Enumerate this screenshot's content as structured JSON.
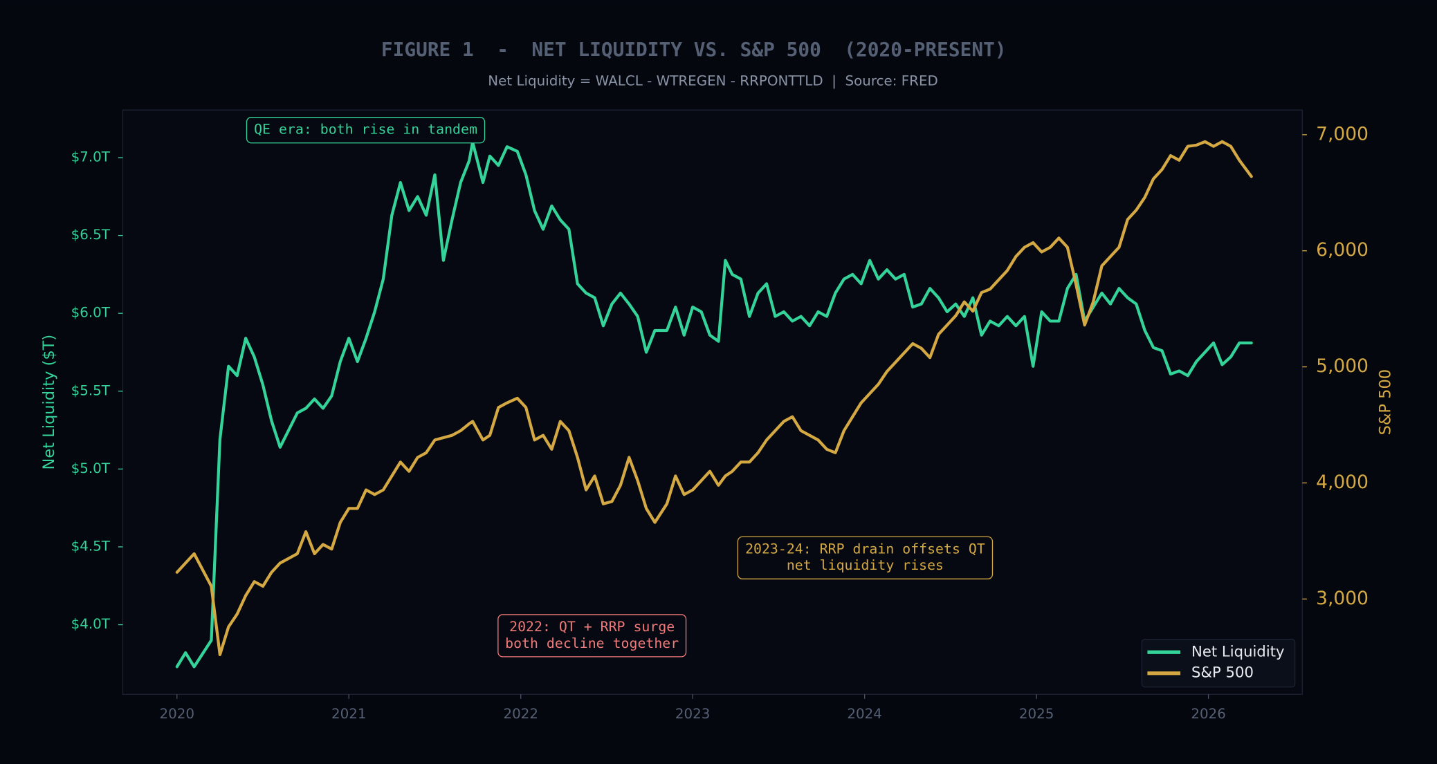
{
  "chart_data": {
    "type": "line",
    "title": "FIGURE 1  -  NET LIQUIDITY VS. S&P 500  (2020-PRESENT)",
    "subtitle": "Net Liquidity = WALCL - WTREGEN - RRPONTTLD  |  Source: FRED",
    "ylabel": "Net Liquidity ($T)",
    "y2label": "S&P 500",
    "xlim": [
      2019.685,
      2026.546
    ],
    "xticks": [
      2020,
      2021,
      2022,
      2023,
      2024,
      2025,
      2026
    ],
    "ylim": [
      3.553,
      7.306
    ],
    "yticks": [
      {
        "value": 4.0,
        "label": "$4.0T"
      },
      {
        "value": 4.5,
        "label": "$4.5T"
      },
      {
        "value": 5.0,
        "label": "$5.0T"
      },
      {
        "value": 5.5,
        "label": "$5.5T"
      },
      {
        "value": 6.0,
        "label": "$6.0T"
      },
      {
        "value": 6.5,
        "label": "$6.5T"
      },
      {
        "value": 7.0,
        "label": "$7.0T"
      }
    ],
    "y2lim": [
      2179,
      7213
    ],
    "y2ticks": [
      {
        "value": 3000,
        "label": "3,000"
      },
      {
        "value": 4000,
        "label": "4,000"
      },
      {
        "value": 5000,
        "label": "5,000"
      },
      {
        "value": 6000,
        "label": "6,000"
      },
      {
        "value": 7000,
        "label": "7,000"
      }
    ],
    "legend": "lower right",
    "grid": false,
    "x": [
      2020.0,
      2020.05,
      2020.1,
      2020.2,
      2020.25,
      2020.3,
      2020.35,
      2020.4,
      2020.45,
      2020.5,
      2020.55,
      2020.6,
      2020.7,
      2020.75,
      2020.8,
      2020.85,
      2020.9,
      2020.95,
      2021.0,
      2021.05,
      2021.1,
      2021.15,
      2021.2,
      2021.25,
      2021.3,
      2021.35,
      2021.4,
      2021.45,
      2021.5,
      2021.55,
      2021.6,
      2021.65,
      2021.7,
      2021.72,
      2021.78,
      2021.82,
      2021.87,
      2021.92,
      2021.98,
      2022.03,
      2022.08,
      2022.13,
      2022.18,
      2022.23,
      2022.28,
      2022.33,
      2022.38,
      2022.43,
      2022.48,
      2022.53,
      2022.58,
      2022.63,
      2022.68,
      2022.73,
      2022.78,
      2022.85,
      2022.9,
      2022.95,
      2023.0,
      2023.05,
      2023.1,
      2023.15,
      2023.19,
      2023.23,
      2023.28,
      2023.33,
      2023.38,
      2023.43,
      2023.48,
      2023.53,
      2023.58,
      2023.63,
      2023.68,
      2023.73,
      2023.78,
      2023.83,
      2023.88,
      2023.93,
      2023.98,
      2024.03,
      2024.08,
      2024.13,
      2024.18,
      2024.23,
      2024.28,
      2024.33,
      2024.38,
      2024.43,
      2024.48,
      2024.53,
      2024.58,
      2024.63,
      2024.68,
      2024.73,
      2024.78,
      2024.83,
      2024.88,
      2024.93,
      2024.98,
      2025.03,
      2025.08,
      2025.13,
      2025.18,
      2025.23,
      2025.28,
      2025.33,
      2025.38,
      2025.43,
      2025.48,
      2025.53,
      2025.58,
      2025.63,
      2025.68,
      2025.73,
      2025.78,
      2025.83,
      2025.88,
      2025.93,
      2025.98,
      2026.03,
      2026.08,
      2026.13,
      2026.18,
      2026.25
    ],
    "series": [
      {
        "name": "Net Liquidity",
        "color": "#34d399",
        "axis": "y",
        "values": [
          3.73,
          3.82,
          3.73,
          3.9,
          5.19,
          5.66,
          5.6,
          5.84,
          5.72,
          5.54,
          5.31,
          5.14,
          5.36,
          5.39,
          5.45,
          5.39,
          5.47,
          5.69,
          5.84,
          5.69,
          5.84,
          6.01,
          6.22,
          6.63,
          6.84,
          6.66,
          6.75,
          6.63,
          6.89,
          6.34,
          6.6,
          6.84,
          6.98,
          7.1,
          6.84,
          7.01,
          6.95,
          7.07,
          7.04,
          6.89,
          6.66,
          6.54,
          6.69,
          6.6,
          6.54,
          6.19,
          6.13,
          6.1,
          5.92,
          6.06,
          6.13,
          6.06,
          5.98,
          5.75,
          5.89,
          5.89,
          6.04,
          5.86,
          6.04,
          6.01,
          5.86,
          5.82,
          6.34,
          6.25,
          6.22,
          5.98,
          6.13,
          6.19,
          5.98,
          6.01,
          5.95,
          5.98,
          5.92,
          6.01,
          5.98,
          6.13,
          6.22,
          6.25,
          6.19,
          6.34,
          6.22,
          6.28,
          6.22,
          6.25,
          6.04,
          6.06,
          6.16,
          6.1,
          6.01,
          6.06,
          5.98,
          6.1,
          5.86,
          5.95,
          5.92,
          5.98,
          5.92,
          5.98,
          5.66,
          6.01,
          5.95,
          5.95,
          6.16,
          6.25,
          5.95,
          6.04,
          6.13,
          6.06,
          6.16,
          6.1,
          6.06,
          5.89,
          5.78,
          5.76,
          5.61,
          5.63,
          5.6,
          5.69,
          5.75,
          5.81,
          5.67,
          5.72,
          5.81,
          5.81
        ]
      },
      {
        "name": "S&P 500",
        "color": "#d4a843",
        "axis": "y2",
        "values": [
          3230,
          3310,
          3390,
          3110,
          2520,
          2760,
          2870,
          3030,
          3150,
          3110,
          3230,
          3310,
          3390,
          3580,
          3390,
          3470,
          3430,
          3660,
          3780,
          3780,
          3940,
          3900,
          3940,
          4060,
          4180,
          4100,
          4220,
          4260,
          4370,
          4390,
          4410,
          4450,
          4510,
          4530,
          4370,
          4410,
          4650,
          4690,
          4730,
          4650,
          4370,
          4410,
          4290,
          4530,
          4450,
          4220,
          3940,
          4060,
          3820,
          3840,
          3980,
          4220,
          4020,
          3780,
          3660,
          3820,
          4060,
          3900,
          3940,
          4020,
          4100,
          3980,
          4060,
          4100,
          4180,
          4180,
          4260,
          4370,
          4450,
          4530,
          4570,
          4450,
          4410,
          4370,
          4290,
          4260,
          4450,
          4570,
          4690,
          4770,
          4850,
          4960,
          5040,
          5120,
          5200,
          5160,
          5080,
          5280,
          5360,
          5440,
          5560,
          5480,
          5640,
          5670,
          5750,
          5830,
          5950,
          6030,
          6070,
          5990,
          6030,
          6110,
          6030,
          5710,
          5360,
          5560,
          5870,
          5950,
          6030,
          6270,
          6350,
          6460,
          6620,
          6700,
          6820,
          6780,
          6900,
          6910,
          6940,
          6900,
          6940,
          6900,
          6780,
          6640
        ]
      }
    ],
    "annotations": [
      {
        "lines": [
          "QE era: both rise in tandem"
        ],
        "color": "#34d399"
      },
      {
        "lines": [
          "2022: QT + RRP surge",
          "both decline together"
        ],
        "color": "#f07a7a"
      },
      {
        "lines": [
          "2023-24: RRP drain offsets QT",
          "net liquidity rises"
        ],
        "color": "#d4a843"
      }
    ]
  }
}
